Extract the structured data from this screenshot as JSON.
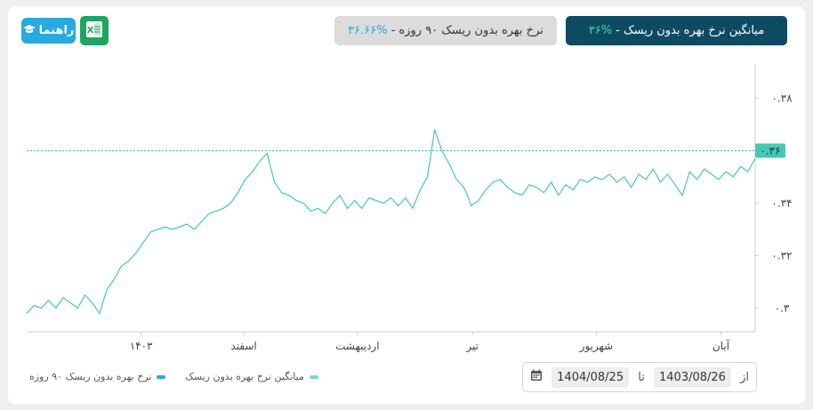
{
  "header": {
    "help_label": "راهنما",
    "avg_title": "میانگین نرخ بهره بدون ریسک - ",
    "avg_value": "۳۶%",
    "rate90_title": "نرخ بهره بدون ریسک ۹۰ روزه - ",
    "rate90_value": "۳۶.۶۶%"
  },
  "icons": {
    "help": "graduation-cap-icon",
    "excel": "excel-file-icon",
    "calendar": "calendar-icon"
  },
  "colors": {
    "line": "#46c9b3",
    "rate90": "#27a9e1",
    "header_dark": "#0f4a63",
    "reference_line": "#2bb89a"
  },
  "legend": [
    {
      "label": "نرخ بهره بدون ریسک ۹۰ روزه",
      "color": "#27a9e1"
    },
    {
      "label": "میانگین نرخ بهره بدون ریسک",
      "color": "#7fd6c6"
    }
  ],
  "date_range": {
    "from_label": "از",
    "from": "1403/08/26",
    "to_label": "تا",
    "to": "1404/08/25"
  },
  "chart_data": {
    "type": "line",
    "title": "",
    "xlabel": "",
    "ylabel": "",
    "x_range": [
      0,
      1
    ],
    "ylim": [
      0.291,
      0.393
    ],
    "y_ticks": [
      {
        "value": 0.3,
        "label": "۰.۳"
      },
      {
        "value": 0.32,
        "label": "۰.۳۲"
      },
      {
        "value": 0.34,
        "label": "۰.۳۴"
      },
      {
        "value": 0.36,
        "label": "۰.۳۶"
      },
      {
        "value": 0.38,
        "label": "۰.۳۸"
      }
    ],
    "x_ticks": [
      {
        "pos": 0.157,
        "label": "۱۴۰۳"
      },
      {
        "pos": 0.298,
        "label": "اسفند"
      },
      {
        "pos": 0.454,
        "label": "اردیبهشت"
      },
      {
        "pos": 0.612,
        "label": "تیر"
      },
      {
        "pos": 0.782,
        "label": "شهریور"
      },
      {
        "pos": 0.953,
        "label": "آبان"
      }
    ],
    "reference_line": {
      "value": 0.36,
      "label": "۰.۳۶"
    },
    "grid": false,
    "legend_position": "bottom-left",
    "series": [
      {
        "name": "میانگین نرخ بهره بدون ریسک",
        "x": [
          0.0,
          0.01,
          0.02,
          0.03,
          0.04,
          0.05,
          0.06,
          0.07,
          0.08,
          0.09,
          0.1,
          0.11,
          0.12,
          0.13,
          0.14,
          0.15,
          0.16,
          0.17,
          0.18,
          0.19,
          0.2,
          0.21,
          0.22,
          0.23,
          0.24,
          0.25,
          0.26,
          0.27,
          0.28,
          0.29,
          0.3,
          0.31,
          0.32,
          0.33,
          0.34,
          0.35,
          0.36,
          0.37,
          0.38,
          0.39,
          0.4,
          0.41,
          0.42,
          0.43,
          0.44,
          0.45,
          0.46,
          0.47,
          0.48,
          0.49,
          0.5,
          0.51,
          0.52,
          0.53,
          0.54,
          0.55,
          0.56,
          0.57,
          0.58,
          0.59,
          0.6,
          0.605,
          0.61,
          0.62,
          0.63,
          0.64,
          0.65,
          0.66,
          0.67,
          0.68,
          0.69,
          0.7,
          0.71,
          0.72,
          0.73,
          0.74,
          0.75,
          0.76,
          0.77,
          0.78,
          0.79,
          0.8,
          0.81,
          0.82,
          0.83,
          0.84,
          0.85,
          0.86,
          0.87,
          0.88,
          0.89,
          0.9,
          0.91,
          0.92,
          0.93,
          0.94,
          0.95,
          0.96,
          0.97,
          0.98,
          0.99,
          1.0
        ],
        "y": [
          0.298,
          0.301,
          0.3,
          0.303,
          0.3,
          0.304,
          0.302,
          0.3,
          0.305,
          0.302,
          0.298,
          0.307,
          0.311,
          0.316,
          0.318,
          0.321,
          0.325,
          0.329,
          0.33,
          0.331,
          0.33,
          0.331,
          0.332,
          0.33,
          0.333,
          0.336,
          0.337,
          0.338,
          0.34,
          0.344,
          0.349,
          0.352,
          0.356,
          0.359,
          0.348,
          0.344,
          0.343,
          0.341,
          0.34,
          0.337,
          0.338,
          0.336,
          0.34,
          0.343,
          0.338,
          0.341,
          0.338,
          0.342,
          0.341,
          0.34,
          0.342,
          0.339,
          0.342,
          0.338,
          0.345,
          0.35,
          0.368,
          0.36,
          0.355,
          0.349,
          0.346,
          0.343,
          0.339,
          0.341,
          0.345,
          0.348,
          0.349,
          0.346,
          0.344,
          0.343,
          0.347,
          0.346,
          0.344,
          0.348,
          0.343,
          0.347,
          0.345,
          0.349,
          0.348,
          0.35,
          0.349,
          0.351,
          0.348,
          0.35,
          0.346,
          0.351,
          0.349,
          0.353,
          0.348,
          0.351,
          0.347,
          0.343,
          0.352,
          0.349,
          0.353,
          0.351,
          0.349,
          0.352,
          0.35,
          0.354,
          0.352,
          0.357
        ]
      }
    ]
  }
}
